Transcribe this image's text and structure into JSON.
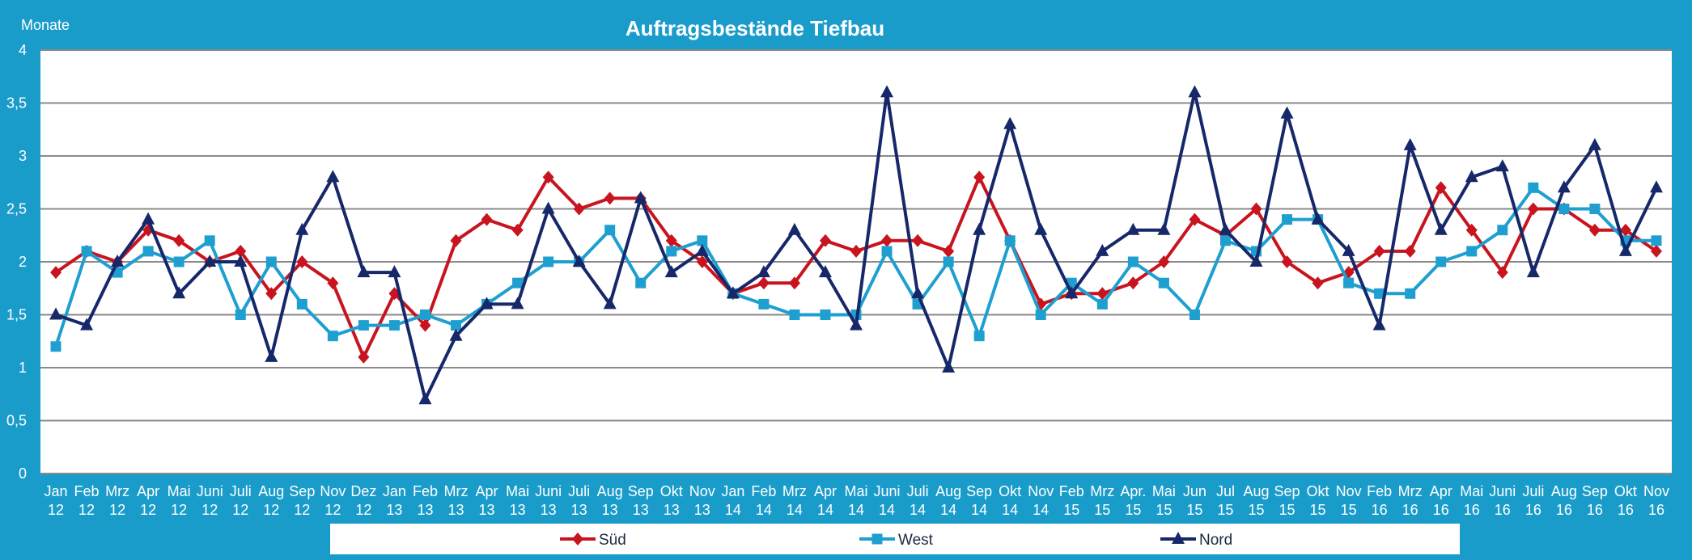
{
  "chart_data": {
    "type": "line",
    "title": "Auftragsbestände Tiefbau",
    "ylabel": "Monate",
    "xlabel": "",
    "ylim": [
      0,
      4
    ],
    "yticks": [
      "0",
      "0,5",
      "1",
      "1,5",
      "2",
      "2,5",
      "3",
      "3,5",
      "4"
    ],
    "grid": true,
    "legend_position": "bottom",
    "categories": [
      [
        "Jan",
        "12"
      ],
      [
        "Feb",
        "12"
      ],
      [
        "Mrz",
        "12"
      ],
      [
        "Apr",
        "12"
      ],
      [
        "Mai",
        "12"
      ],
      [
        "Juni",
        "12"
      ],
      [
        "Juli",
        "12"
      ],
      [
        "Aug",
        "12"
      ],
      [
        "Sep",
        "12"
      ],
      [
        "Nov",
        "12"
      ],
      [
        "Dez",
        "12"
      ],
      [
        "Jan",
        "13"
      ],
      [
        "Feb",
        "13"
      ],
      [
        "Mrz",
        "13"
      ],
      [
        "Apr",
        "13"
      ],
      [
        "Mai",
        "13"
      ],
      [
        "Juni",
        "13"
      ],
      [
        "Juli",
        "13"
      ],
      [
        "Aug",
        "13"
      ],
      [
        "Sep",
        "13"
      ],
      [
        "Okt",
        "13"
      ],
      [
        "Nov",
        "13"
      ],
      [
        "Jan",
        "14"
      ],
      [
        "Feb",
        "14"
      ],
      [
        "Mrz",
        "14"
      ],
      [
        "Apr",
        "14"
      ],
      [
        "Mai",
        "14"
      ],
      [
        "Juni",
        "14"
      ],
      [
        "Juli",
        "14"
      ],
      [
        "Aug",
        "14"
      ],
      [
        "Sep",
        "14"
      ],
      [
        "Okt",
        "14"
      ],
      [
        "Nov",
        "14"
      ],
      [
        "Feb",
        "15"
      ],
      [
        "Mrz",
        "15"
      ],
      [
        "Apr.",
        "15"
      ],
      [
        "Mai",
        "15"
      ],
      [
        "Jun",
        "15"
      ],
      [
        "Jul",
        "15"
      ],
      [
        "Aug",
        "15"
      ],
      [
        "Sep",
        "15"
      ],
      [
        "Okt",
        "15"
      ],
      [
        "Nov",
        "15"
      ],
      [
        "Feb",
        "16"
      ],
      [
        "Mrz",
        "16"
      ],
      [
        "Apr",
        "16"
      ],
      [
        "Mai",
        "16"
      ],
      [
        "Juni",
        "16"
      ],
      [
        "Juli",
        "16"
      ],
      [
        "Aug",
        "16"
      ],
      [
        "Sep",
        "16"
      ],
      [
        "Okt",
        "16"
      ],
      [
        "Nov",
        "16"
      ]
    ],
    "series": [
      {
        "name": "Süd",
        "color": "#c8141e",
        "marker": "diamond",
        "values": [
          1.9,
          2.1,
          2.0,
          2.3,
          2.2,
          2.0,
          2.1,
          1.7,
          2.0,
          1.8,
          1.1,
          1.7,
          1.4,
          2.2,
          2.4,
          2.3,
          2.8,
          2.5,
          2.6,
          2.6,
          2.2,
          2.0,
          1.7,
          1.8,
          1.8,
          2.2,
          2.1,
          2.2,
          2.2,
          2.1,
          2.8,
          2.2,
          1.6,
          1.7,
          1.7,
          1.8,
          2.0,
          2.4,
          2.25,
          2.5,
          2.0,
          1.8,
          1.9,
          2.1,
          2.1,
          2.7,
          2.3,
          1.9,
          2.5,
          2.5,
          2.3,
          2.3,
          2.1
        ]
      },
      {
        "name": "West",
        "color": "#1e9fd0",
        "marker": "square",
        "values": [
          1.2,
          2.1,
          1.9,
          2.1,
          2.0,
          2.2,
          1.5,
          2.0,
          1.6,
          1.3,
          1.4,
          1.4,
          1.5,
          1.4,
          1.6,
          1.8,
          2.0,
          2.0,
          2.3,
          1.8,
          2.1,
          2.2,
          1.7,
          1.6,
          1.5,
          1.5,
          1.5,
          2.1,
          1.6,
          2.0,
          1.3,
          2.2,
          1.5,
          1.8,
          1.6,
          2.0,
          1.8,
          1.5,
          2.2,
          2.1,
          2.4,
          2.4,
          1.8,
          1.7,
          1.7,
          2.0,
          2.1,
          2.3,
          2.7,
          2.5,
          2.5,
          2.2,
          2.2
        ]
      },
      {
        "name": "Nord",
        "color": "#16286a",
        "marker": "triangle",
        "values": [
          1.5,
          1.4,
          2.0,
          2.4,
          1.7,
          2.0,
          2.0,
          1.1,
          2.3,
          2.8,
          1.9,
          1.9,
          0.7,
          1.3,
          1.6,
          1.6,
          2.5,
          2.0,
          1.6,
          2.6,
          1.9,
          2.1,
          1.7,
          1.9,
          2.3,
          1.9,
          1.4,
          3.6,
          1.7,
          1.0,
          2.3,
          3.3,
          2.3,
          1.7,
          2.1,
          2.3,
          2.3,
          3.6,
          2.3,
          2.0,
          3.4,
          2.4,
          2.1,
          1.4,
          3.1,
          2.3,
          2.8,
          2.9,
          1.9,
          2.7,
          3.1,
          2.1,
          2.7
        ]
      }
    ]
  }
}
